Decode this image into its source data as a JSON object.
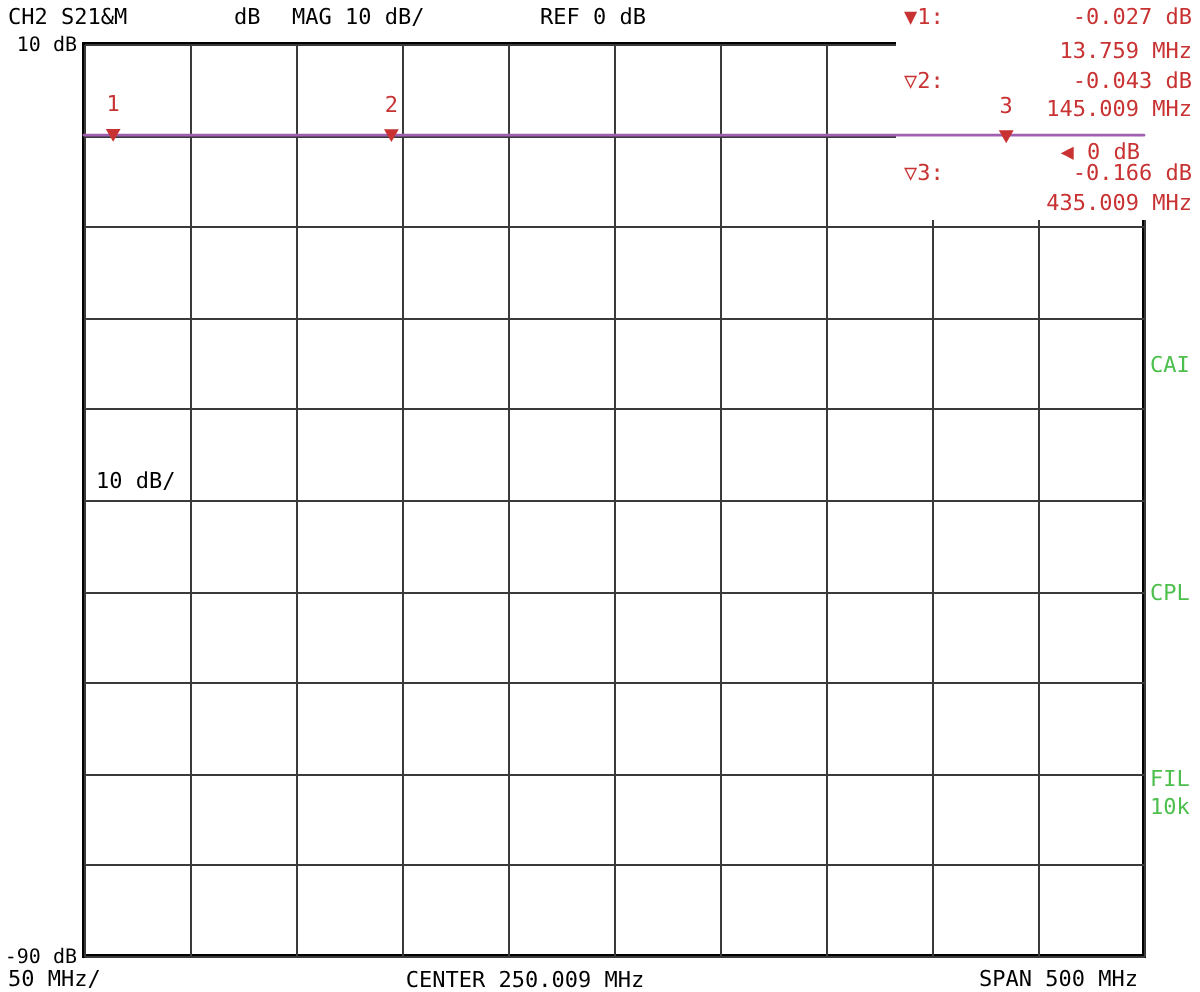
{
  "chart_data": {
    "type": "line",
    "title": "CH2 S21&M",
    "xlabel": "CENTER 250.009 MHz",
    "annotations": [
      "dB",
      "MAG 10 dB/",
      "REF 0 dB",
      "▼1:",
      "-0.027 dB",
      "13.759 MHz",
      "▽2:",
      "-0.043 dB",
      "145.009 MHz",
      "▽3:",
      "-0.166 dB",
      "435.009 MHz",
      "10 dB/",
      "50 MHz/",
      "SPAN 500 MHz",
      "CAI",
      "CPL",
      "FIL\n10k",
      "1",
      "2",
      "3",
      "◀ 0 dB"
    ],
    "categories": [
      null,
      null,
      null,
      null,
      null,
      null,
      null,
      null,
      null,
      null,
      null,
      null,
      null,
      null,
      null,
      null,
      null,
      null,
      null,
      null,
      null,
      null,
      null,
      null,
      null,
      null,
      null,
      null,
      null,
      null,
      null,
      null,
      null,
      null,
      null,
      null,
      null,
      null,
      null,
      null,
      null,
      null,
      null,
      null,
      null,
      null,
      null,
      null,
      null,
      null,
      null,
      null,
      null,
      null,
      null,
      null,
      null,
      null,
      null,
      null,
      null,
      null,
      null,
      null,
      null,
      null,
      null,
      null,
      null,
      null,
      null,
      null,
      null,
      null,
      null,
      null,
      null,
      null,
      null,
      null,
      null,
      null,
      null,
      null,
      null,
      null,
      null,
      null,
      null,
      null,
      null,
      null,
      null,
      null,
      null,
      null,
      null,
      null,
      null,
      null,
      null,
      null,
      null,
      null,
      null,
      null,
      null,
      null,
      null,
      null,
      null,
      null,
      null,
      null,
      null,
      null,
      null,
      null,
      null,
      null,
      null,
      null,
      null,
      null,
      null,
      null,
      null,
      null,
      null,
      null,
      null,
      null,
      null,
      null,
      null,
      null,
      null,
      null,
      null,
      null,
      null,
      null,
      null,
      null,
      null,
      null,
      null,
      null,
      null,
      null,
      null,
      null,
      null,
      null,
      null,
      null,
      null,
      null,
      null,
      null,
      null,
      null,
      null,
      null,
      null,
      null,
      null,
      null,
      null,
      null,
      null,
      null,
      null,
      null,
      null,
      null,
      null,
      null,
      null,
      null,
      null,
      null,
      null,
      null,
      null,
      null,
      null,
      null,
      null,
      null,
      null,
      null,
      null,
      null,
      null,
      null,
      null,
      null,
      null,
      null,
      null,
      null,
      null,
      null,
      null,
      null,
      null,
      null,
      null,
      null,
      null,
      null,
      null,
      null,
      null,
      null,
      null,
      null,
      null,
      null,
      null,
      null,
      null,
      null,
      null,
      null,
      null,
      null,
      null,
      null,
      null,
      null,
      null,
      null,
      null,
      null,
      null,
      null,
      null,
      null,
      null,
      null,
      null,
      null,
      null,
      null,
      null,
      null,
      null,
      null,
      null,
      null,
      null,
      null,
      null,
      null,
      null,
      null,
      null,
      null,
      null,
      null,
      null,
      null,
      null,
      null,
      null,
      null,
      null,
      null,
      null,
      null,
      null,
      null,
      null,
      null,
      null,
      null,
      null,
      null,
      null,
      null,
      null,
      null,
      null,
      null,
      null,
      null,
      null,
      null,
      null,
      null,
      null,
      null,
      null,
      null,
      null,
      null,
      null,
      null,
      null,
      null,
      null,
      null,
      null,
      null,
      null,
      null,
      null,
      null,
      null,
      null,
      null,
      null,
      null,
      null,
      null,
      null,
      null,
      null,
      null,
      null,
      null,
      null,
      null,
      null,
      null,
      null,
      null,
      null,
      null,
      null,
      null,
      null,
      null,
      null,
      null,
      null,
      null,
      null,
      null,
      null,
      null,
      null,
      null,
      null,
      null,
      null,
      null,
      null,
      null,
      null,
      null,
      null,
      null,
      null,
      null,
      null,
      null,
      null,
      null,
      null,
      null,
      null,
      null,
      null,
      null,
      null,
      null,
      null,
      null,
      null,
      null,
      null,
      null,
      null,
      null,
      null,
      null,
      null,
      null,
      null,
      null,
      null,
      null,
      null,
      null,
      null,
      null,
      null,
      null,
      null,
      null,
      null,
      null,
      null,
      null,
      null,
      null,
      null,
      null
    ],
    "series": [
      {
        "color": "#a060b0",
        "values": [
          0,
          0,
          0,
          0,
          0,
          0,
          0,
          0,
          0,
          0,
          0,
          -0.027,
          0,
          0,
          0,
          0,
          0,
          0,
          0,
          0,
          0,
          0,
          0,
          0,
          0,
          0,
          0,
          0,
          0,
          0,
          0,
          0,
          0,
          0,
          0,
          0,
          0,
          0,
          0,
          0,
          0,
          0,
          0,
          0,
          0,
          0,
          0,
          0,
          0,
          0,
          0,
          0,
          0,
          0,
          0,
          0,
          0,
          0,
          0,
          0,
          0,
          0,
          0,
          0,
          0,
          0,
          0,
          0,
          0,
          0,
          0,
          0,
          0,
          0,
          0,
          0,
          0,
          0,
          0,
          0,
          0,
          0,
          0,
          0,
          0,
          0,
          0,
          0,
          0,
          0,
          0,
          0,
          0,
          0,
          0,
          0,
          0,
          0,
          0,
          0,
          0,
          0,
          0,
          0,
          0,
          0,
          0,
          0,
          0,
          0,
          0,
          0,
          0,
          0,
          0,
          0,
          -0.043,
          0,
          0,
          0,
          0,
          0,
          0,
          0,
          0,
          0,
          0,
          0,
          0,
          0,
          0,
          0,
          0,
          0,
          0,
          0,
          0,
          0,
          0,
          0,
          0,
          0,
          0,
          0,
          0,
          0,
          0,
          0,
          0,
          0,
          0,
          0,
          0,
          0,
          0,
          0,
          0,
          0,
          0,
          0,
          0,
          0,
          0,
          0,
          0,
          0,
          0,
          0,
          0,
          0,
          0,
          0,
          0,
          0,
          0,
          0,
          0,
          0,
          0,
          0,
          0,
          0,
          0,
          0,
          0,
          0,
          0,
          0,
          0,
          0,
          0,
          0,
          0,
          0,
          0,
          0,
          0,
          0,
          0,
          0,
          0,
          0,
          0,
          0,
          0,
          0,
          0,
          0,
          0,
          0,
          0,
          0,
          0,
          0,
          0,
          0,
          0,
          0,
          0,
          0,
          0,
          0,
          0,
          0,
          0,
          0,
          0,
          0,
          0,
          0,
          0,
          0,
          0,
          0,
          0,
          0,
          0,
          0,
          0,
          0,
          0,
          0,
          0,
          0,
          0,
          0,
          0,
          0,
          0,
          0,
          0,
          0,
          0,
          0,
          0,
          0,
          0,
          0,
          0,
          0,
          0,
          0,
          0,
          0,
          0,
          0,
          0,
          0,
          0,
          0,
          0,
          0,
          0,
          0,
          0,
          0,
          0,
          0,
          0,
          0,
          0,
          0,
          0,
          0,
          0,
          0,
          0,
          0,
          0,
          0,
          0,
          0,
          0,
          0,
          0,
          0,
          0,
          0,
          0,
          0,
          0,
          0,
          0,
          0,
          0,
          0,
          0,
          0,
          0,
          0,
          0,
          0,
          0,
          0,
          0,
          0,
          0,
          0,
          0,
          0,
          0,
          0,
          0,
          0,
          0,
          0,
          0,
          0,
          0,
          0,
          0,
          0,
          0,
          0,
          0,
          0,
          0,
          0,
          0,
          0,
          0,
          0,
          0,
          0,
          0,
          0,
          0,
          0,
          -0.166,
          0,
          0,
          0,
          0,
          0,
          0,
          0,
          0,
          0,
          0,
          0,
          0,
          0,
          0,
          0,
          0,
          0,
          0,
          0,
          0,
          0,
          0,
          0,
          0,
          0,
          0,
          0,
          0,
          0,
          0,
          0,
          0,
          0,
          0,
          0,
          0,
          0,
          0,
          0,
          0,
          0,
          0,
          0,
          0,
          0,
          0,
          0,
          0,
          0,
          0,
          0,
          0
        ]
      },
      {
        "type": "scatter",
        "marker": "triangle",
        "color": "#c83232",
        "values": [
          null,
          null,
          null,
          null,
          null,
          null,
          null,
          null,
          null,
          null,
          null,
          -0.027,
          null,
          null,
          null,
          null,
          null,
          null,
          null,
          null,
          null,
          null,
          null,
          null,
          null,
          null,
          null,
          null,
          null,
          null,
          null,
          null,
          null,
          null,
          null,
          null,
          null,
          null,
          null,
          null,
          null,
          null,
          null,
          null,
          null,
          null,
          null,
          null,
          null,
          null,
          null,
          null,
          null,
          null,
          null,
          null,
          null,
          null,
          null,
          null,
          null,
          null,
          null,
          null,
          null,
          null,
          null,
          null,
          null,
          null,
          null,
          null,
          null,
          null,
          null,
          null,
          null,
          null,
          null,
          null,
          null,
          null,
          null,
          null,
          null,
          null,
          null,
          null,
          null,
          null,
          null,
          null,
          null,
          null,
          null,
          null,
          null,
          null,
          null,
          null,
          null,
          null,
          null,
          null,
          null,
          null,
          null,
          null,
          null,
          null,
          null,
          null,
          null,
          null,
          null,
          null,
          -0.043,
          null,
          null,
          null,
          null,
          null,
          null,
          null,
          null,
          null,
          null,
          null,
          null,
          null,
          null,
          null,
          null,
          null,
          null,
          null,
          null,
          null,
          null,
          null,
          null,
          null,
          null,
          null,
          null,
          null,
          null,
          null,
          null,
          null,
          null,
          null,
          null,
          null,
          null,
          null,
          null,
          null,
          null,
          null,
          null,
          null,
          null,
          null,
          null,
          null,
          null,
          null,
          null,
          null,
          null,
          null,
          null,
          null,
          null,
          null,
          null,
          null,
          null,
          null,
          null,
          null,
          null,
          null,
          null,
          null,
          null,
          null,
          null,
          null,
          null,
          null,
          null,
          null,
          null,
          null,
          null,
          null,
          null,
          null,
          null,
          null,
          null,
          null,
          null,
          null,
          null,
          null,
          null,
          null,
          null,
          null,
          null,
          null,
          null,
          null,
          null,
          null,
          null,
          null,
          null,
          null,
          null,
          null,
          null,
          null,
          null,
          null,
          null,
          null,
          null,
          null,
          null,
          null,
          null,
          null,
          null,
          null,
          null,
          null,
          null,
          null,
          null,
          null,
          null,
          null,
          null,
          null,
          null,
          null,
          null,
          null,
          null,
          null,
          null,
          null,
          null,
          null,
          null,
          null,
          null,
          null,
          null,
          null,
          null,
          null,
          null,
          null,
          null,
          null,
          null,
          null,
          null,
          null,
          null,
          null,
          null,
          null,
          null,
          null,
          null,
          null,
          null,
          null,
          null,
          null,
          null,
          null,
          null,
          null,
          null,
          null,
          null,
          null,
          null,
          null,
          null,
          null,
          null,
          null,
          null,
          null,
          null,
          null,
          null,
          null,
          null,
          null,
          null,
          null,
          null,
          null,
          null,
          null,
          null,
          null,
          null,
          null,
          null,
          null,
          null,
          null,
          null,
          null,
          null,
          null,
          null,
          null,
          null,
          null,
          null,
          null,
          null,
          null,
          null,
          null,
          null,
          null,
          null,
          null,
          null,
          null,
          null,
          null,
          null,
          null,
          null,
          null,
          -0.166,
          null,
          null,
          null,
          null,
          null,
          null,
          null,
          null,
          null,
          null,
          null,
          null,
          null,
          null,
          null,
          null,
          null,
          null,
          null,
          null,
          null,
          null,
          null,
          null,
          null,
          null,
          null,
          null,
          null,
          null,
          null,
          null,
          null,
          null,
          null,
          null,
          null,
          null,
          null,
          null,
          null,
          null,
          null,
          null,
          null,
          null,
          null,
          null,
          null,
          null,
          null,
          null
        ]
      }
    ],
    "ylim": [
      -90,
      10
    ],
    "yticks": [
      {
        "value": 10,
        "label": "10 dB"
      },
      {
        "value": 0,
        "label": null
      },
      {
        "value": -10,
        "label": null
      },
      {
        "value": -20,
        "label": null
      },
      {
        "value": -30,
        "label": null
      },
      {
        "value": -40,
        "label": null
      },
      {
        "value": -50,
        "label": null
      },
      {
        "value": -60,
        "label": null
      },
      {
        "value": -70,
        "label": null
      },
      {
        "value": -80,
        "label": null
      },
      {
        "value": -90,
        "label": "-90 dB"
      }
    ],
    "grid": true,
    "tick_labels": "y",
    "marker": "none"
  }
}
